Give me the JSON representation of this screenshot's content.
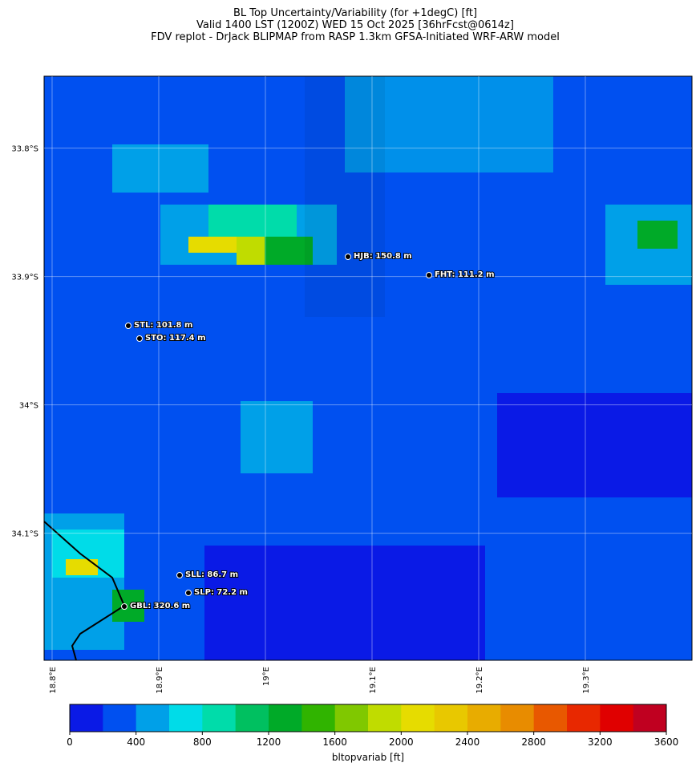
{
  "title": [
    "BL Top Uncertainty/Variability (for +1degC) [ft]",
    "Valid 1400 LST (1200Z) WED 15 Oct 2025 [36hrFcst@0614z]",
    "FDV replot - DrJack BLIPMAP from RASP 1.3km GFSA-Initiated WRF-ARW model"
  ],
  "map": {
    "xlim": [
      18.7925,
      19.4
    ],
    "ylim": [
      -34.199,
      -33.744
    ],
    "xticks": [
      {
        "value": 18.8,
        "label": "18.8°E"
      },
      {
        "value": 18.9,
        "label": "18.9°E"
      },
      {
        "value": 19.0,
        "label": "19°E"
      },
      {
        "value": 19.1,
        "label": "19.1°E"
      },
      {
        "value": 19.2,
        "label": "19.2°E"
      },
      {
        "value": 19.3,
        "label": "19.3°E"
      }
    ],
    "yticks": [
      {
        "value": -33.8,
        "label": "33.8°S"
      },
      {
        "value": -33.9,
        "label": "33.9°S"
      },
      {
        "value": -34.0,
        "label": "34°S"
      },
      {
        "value": -34.1,
        "label": "34.1°S"
      }
    ],
    "stations": [
      "HJB: 150.8 m",
      "FHT: 111.2 m",
      "STL: 101.8 m",
      "STO: 117.4 m",
      "SLL: 86.7 m",
      "SLP: 72.2 m",
      "GBL: 320.6 m"
    ]
  },
  "colorbar": {
    "label": "bltopvariab [ft]",
    "lim": [
      0,
      3600
    ],
    "ticks": [
      0,
      400,
      800,
      1200,
      1600,
      2000,
      2400,
      2800,
      3200,
      3600
    ],
    "colors": [
      "#0a1ae6",
      "#0050f0",
      "#00a0e8",
      "#00dce8",
      "#00dcaa",
      "#00c060",
      "#00aa28",
      "#30b400",
      "#80c800",
      "#c0dc00",
      "#e6dc00",
      "#e8c800",
      "#e8ac00",
      "#e88c00",
      "#e85800",
      "#e82800",
      "#e00000",
      "#c00020"
    ]
  }
}
